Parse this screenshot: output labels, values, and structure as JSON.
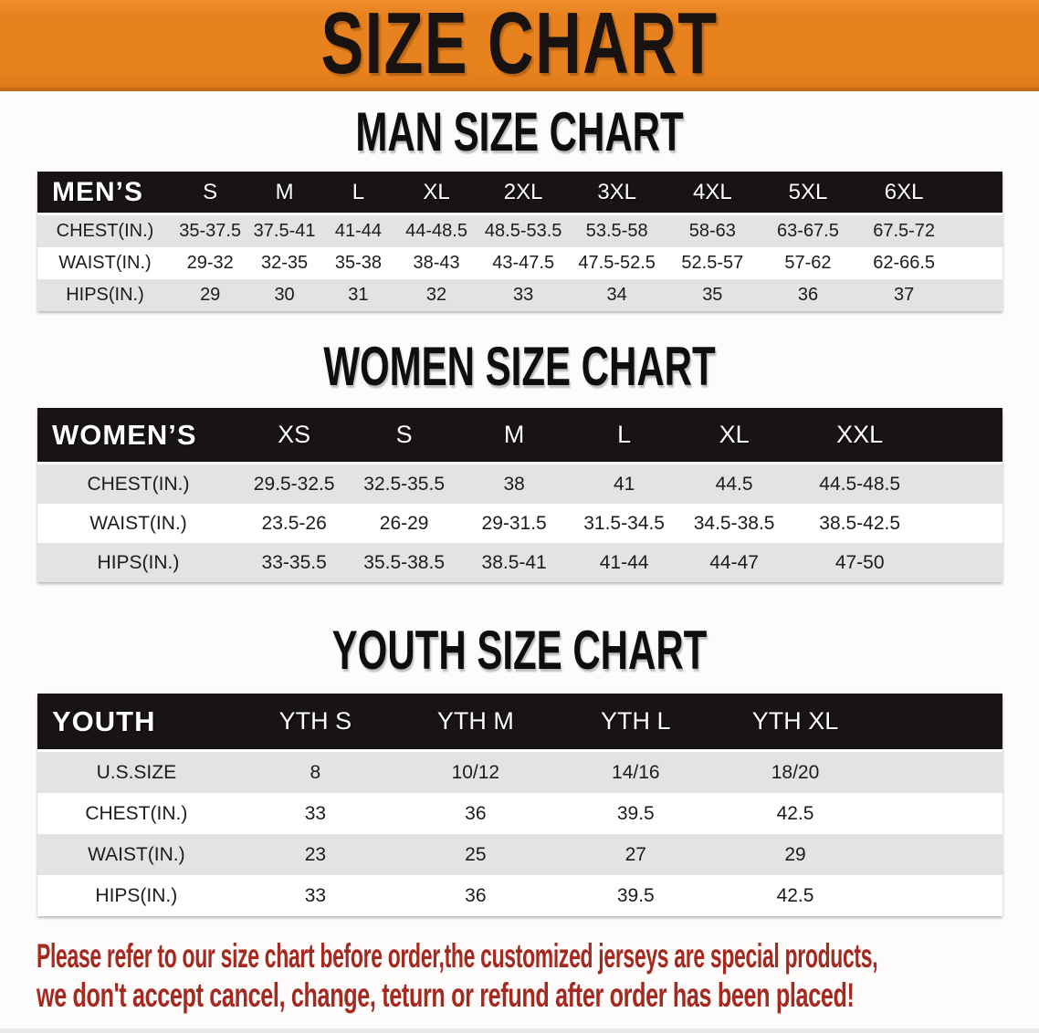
{
  "banner": {
    "title": "SIZE CHART"
  },
  "colors": {
    "banner_orange": "#E8821F",
    "banner_border": "#BF6A16",
    "table_header_bg": "#181314",
    "row_stripe_gray": "#E3E3E3",
    "disclaimer_red": "#A5291F",
    "title_black": "#0E0E0E"
  },
  "sections": [
    {
      "title": "MAN SIZE CHART",
      "table": {
        "header": [
          "MEN’S",
          "S",
          "M",
          "L",
          "XL",
          "2XL",
          "3XL",
          "4XL",
          "5XL",
          "6XL"
        ],
        "rows": [
          [
            "CHEST(IN.)",
            "35-37.5",
            "37.5-41",
            "41-44",
            "44-48.5",
            "48.5-53.5",
            "53.5-58",
            "58-63",
            "63-67.5",
            "67.5-72"
          ],
          [
            "WAIST(IN.)",
            "29-32",
            "32-35",
            "35-38",
            "38-43",
            "43-47.5",
            "47.5-52.5",
            "52.5-57",
            "57-62",
            "62-66.5"
          ],
          [
            "HIPS(IN.)",
            "29",
            "30",
            "31",
            "32",
            "33",
            "34",
            "35",
            "36",
            "37"
          ]
        ]
      }
    },
    {
      "title": "WOMEN SIZE CHART",
      "table": {
        "header": [
          "WOMEN’S",
          "XS",
          "S",
          "M",
          "L",
          "XL",
          "XXL"
        ],
        "rows": [
          [
            "CHEST(IN.)",
            "29.5-32.5",
            "32.5-35.5",
            "38",
            "41",
            "44.5",
            "44.5-48.5"
          ],
          [
            "WAIST(IN.)",
            "23.5-26",
            "26-29",
            "29-31.5",
            "31.5-34.5",
            "34.5-38.5",
            "38.5-42.5"
          ],
          [
            "HIPS(IN.)",
            "33-35.5",
            "35.5-38.5",
            "38.5-41",
            "41-44",
            "44-47",
            "47-50"
          ]
        ]
      }
    },
    {
      "title": "YOUTH SIZE CHART",
      "table": {
        "header": [
          "YOUTH",
          "YTH S",
          "YTH M",
          "YTH L",
          "YTH XL"
        ],
        "rows": [
          [
            "U.S.SIZE",
            "8",
            "10/12",
            "14/16",
            "18/20"
          ],
          [
            "CHEST(IN.)",
            "33",
            "36",
            "39.5",
            "42.5"
          ],
          [
            "WAIST(IN.)",
            "23",
            "25",
            "27",
            "29"
          ],
          [
            "HIPS(IN.)",
            "33",
            "36",
            "39.5",
            "42.5"
          ]
        ]
      }
    }
  ],
  "disclaimer": {
    "line1": "Please refer to our size chart before order,the customized jerseys are special products,",
    "line2": "we don't accept cancel, change, teturn or refund after order has been placed!"
  }
}
